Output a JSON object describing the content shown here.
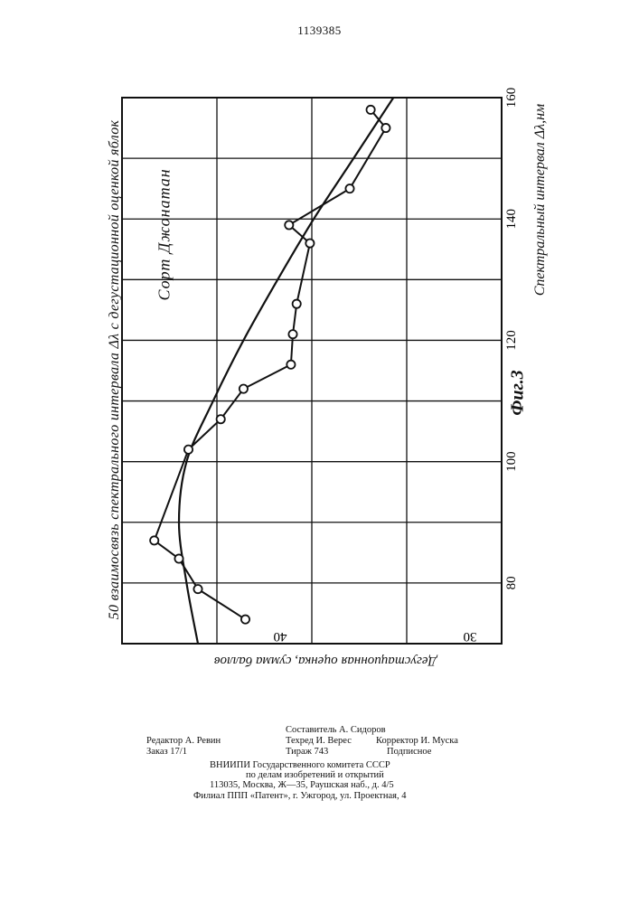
{
  "page": {
    "patent_number": "1139385"
  },
  "figure": {
    "title_number": "50",
    "title": "взаимосвязь спектрального интервала Δλ с дегустационной оценкой яблок",
    "variety_text": "Сорт   Джонатан",
    "x_axis_label": "Спектральный интервал Δλ,нм",
    "y_axis_label": "Дегустационная оценка, сумма баллов",
    "fig_label": "Фиг.3"
  },
  "chart_data": {
    "type": "line",
    "title": "взаимосвязь спектрального интервала Δλ с дегустационной оценкой яблок",
    "xlabel": "Спектральный интервал Δλ,нм",
    "ylabel": "Дегустационная оценка, сумма баллов",
    "xlim": [
      70,
      160
    ],
    "ylim": [
      25,
      45
    ],
    "x_ticks": [
      "80",
      "100",
      "120",
      "140",
      "160"
    ],
    "y_ticks": [
      "40",
      "30"
    ],
    "grid": true,
    "series": [
      {
        "style": "markers",
        "x": [
          74,
          79,
          84,
          87,
          102,
          107,
          112,
          116,
          121,
          126,
          136,
          139,
          145,
          155,
          158
        ],
        "y": [
          38.5,
          41.0,
          42.0,
          43.3,
          41.5,
          39.8,
          38.6,
          36.1,
          36.0,
          35.8,
          35.1,
          36.2,
          33.0,
          31.1,
          31.9
        ],
        "marker": "circle"
      },
      {
        "style": "smooth",
        "x": [
          70,
          80,
          90,
          100,
          110,
          120,
          130,
          140,
          150,
          160
        ],
        "y": [
          41.0,
          41.6,
          42.0,
          41.6,
          40.2,
          38.6,
          36.8,
          34.9,
          32.8,
          30.7
        ]
      }
    ]
  },
  "footer": {
    "editor": "Редактор А. Ревин",
    "order": "Заказ 17/1",
    "compiler": "Составитель А. Сидоров",
    "tech_editor": "Техред И. Верес",
    "circulation": "Тираж 743",
    "corrector": "Корректор И. Муска",
    "subscription": "Подписное",
    "org1": "ВНИИПИ Государственного комитета СССР",
    "org2": "по делам изобретений и открытий",
    "address": "113035, Москва, Ж—35, Раушская наб., д. 4/5",
    "branch": "Филиал ППП «Патент», г. Ужгород, ул. Проектная, 4"
  }
}
